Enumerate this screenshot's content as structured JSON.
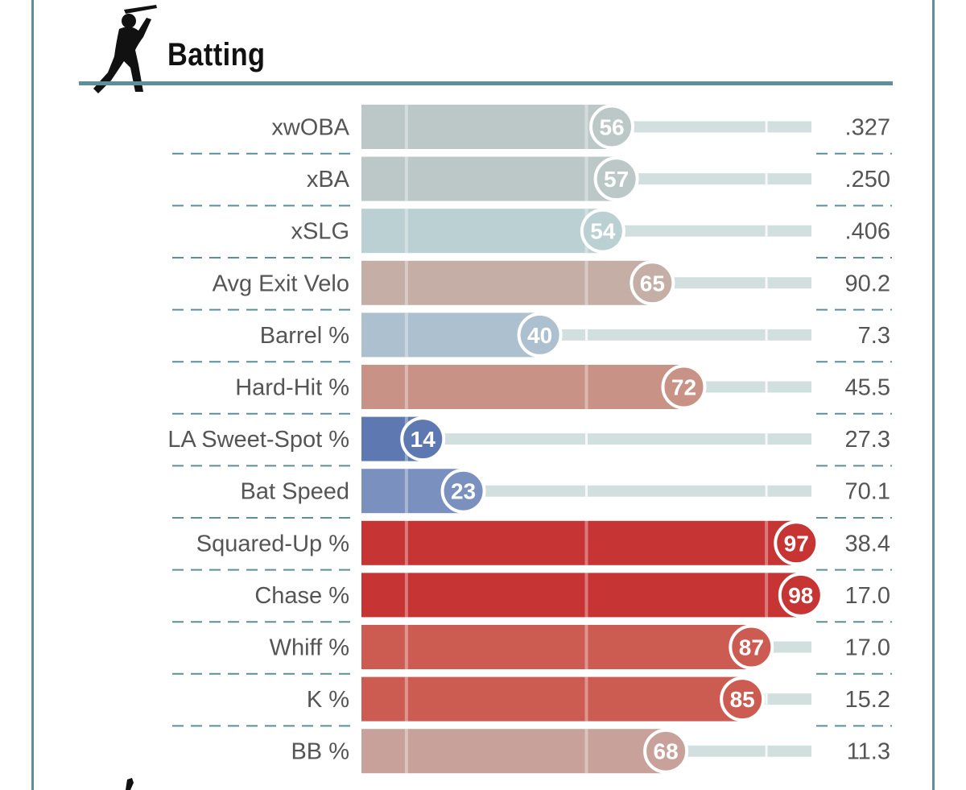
{
  "title": "Batting",
  "icons": {
    "header": "batter-silhouette-icon",
    "footer": "pitcher-silhouette-icon"
  },
  "colors": {
    "frame": "#5c8f9a",
    "track": "#d2dfdf",
    "divider": "#5c8f9a"
  },
  "chart_data": {
    "type": "bar",
    "orientation": "horizontal",
    "title": "Batting",
    "xlim": [
      0,
      100
    ],
    "categories": [
      "xwOBA",
      "xBA",
      "xSLG",
      "Avg Exit Velo",
      "Barrel %",
      "Hard-Hit %",
      "LA Sweet-Spot %",
      "Bat Speed",
      "Squared-Up %",
      "Chase %",
      "Whiff %",
      "K %",
      "BB %"
    ],
    "percentiles": [
      56,
      57,
      54,
      65,
      40,
      72,
      14,
      23,
      97,
      98,
      87,
      85,
      68
    ],
    "stat_values": [
      ".327",
      ".250",
      ".406",
      "90.2",
      "7.3",
      "45.5",
      "27.3",
      "70.1",
      "38.4",
      "17.0",
      "17.0",
      "15.2",
      "11.3"
    ],
    "bar_colors": [
      "#bcc8c8",
      "#bcc8c8",
      "#bbd0d3",
      "#c4aea6",
      "#adc0cf",
      "#c99286",
      "#5e78b2",
      "#7a90be",
      "#c63433",
      "#c63433",
      "#cc5c52",
      "#cc5c52",
      "#c8a29a"
    ],
    "gridlines_at": [
      10,
      50,
      90
    ],
    "grid": true,
    "legend": "none"
  }
}
